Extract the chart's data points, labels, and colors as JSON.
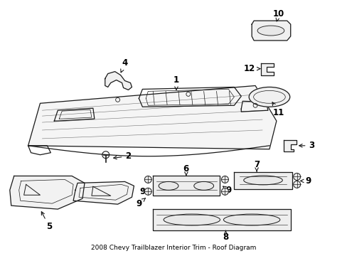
{
  "title": "2008 Chevy Trailblazer Interior Trim - Roof Diagram",
  "background_color": "#ffffff",
  "line_color": "#1a1a1a",
  "text_color": "#000000",
  "figsize": [
    4.89,
    3.6
  ],
  "dpi": 100
}
